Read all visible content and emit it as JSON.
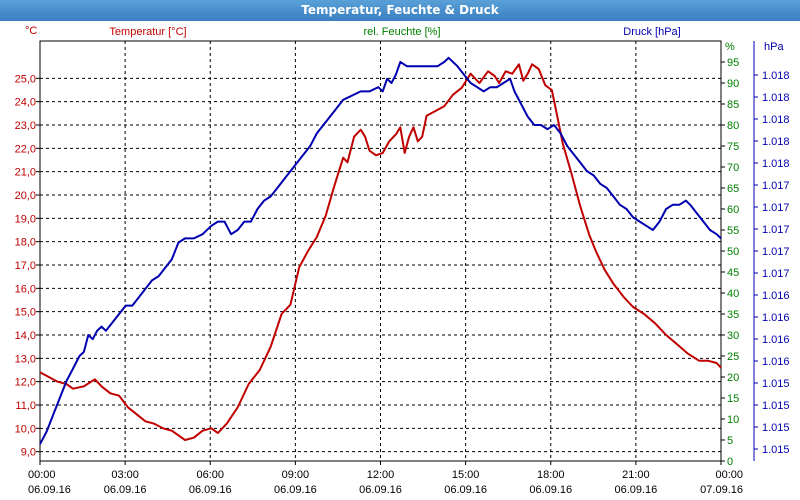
{
  "window": {
    "title": "Temperatur, Feuchte & Druck"
  },
  "colors": {
    "temperature": "#c00000",
    "humidity": "#008000",
    "pressure": "#0000b0",
    "grid": "#000000"
  },
  "chart_data": {
    "type": "line",
    "grid": true,
    "x": {
      "tick_hours": [
        0,
        3,
        6,
        9,
        12,
        15,
        18,
        21,
        24
      ],
      "tick_times": [
        "00:00",
        "03:00",
        "06:00",
        "09:00",
        "12:00",
        "15:00",
        "18:00",
        "21:00",
        "00:00"
      ],
      "tick_dates": [
        "06.09.16",
        "06.09.16",
        "06.09.16",
        "06.09.16",
        "06.09.16",
        "06.09.16",
        "06.09.16",
        "06.09.16",
        "07.09.16"
      ]
    },
    "axes": {
      "temperature": {
        "label": "Temperatur [°C]",
        "unit": "°C",
        "ylim": [
          8.6,
          26.6
        ],
        "tick_values": [
          9,
          10,
          11,
          12,
          13,
          14,
          15,
          16,
          17,
          18,
          19,
          20,
          21,
          22,
          23,
          24,
          25
        ],
        "tick_labels": [
          "9,0",
          "10,0",
          "11,0",
          "12,0",
          "13,0",
          "14,0",
          "15,0",
          "16,0",
          "17,0",
          "18,0",
          "19,0",
          "20,0",
          "21,0",
          "22,0",
          "23,0",
          "24,0",
          "25,0"
        ]
      },
      "humidity": {
        "label": "rel. Feuchte [%]",
        "unit": "%",
        "ylim": [
          0,
          100
        ],
        "tick_values": [
          0,
          5,
          10,
          15,
          20,
          25,
          30,
          35,
          40,
          45,
          50,
          55,
          60,
          65,
          70,
          75,
          80,
          85,
          90,
          95
        ],
        "tick_labels": [
          "0",
          "5",
          "10",
          "15",
          "20",
          "25",
          "30",
          "35",
          "40",
          "45",
          "50",
          "55",
          "60",
          "65",
          "70",
          "75",
          "80",
          "85",
          "90",
          "95"
        ]
      },
      "pressure": {
        "label": "Druck [hPa]",
        "unit": "hPa",
        "tick_labels": [
          "1.018",
          "1.018",
          "1.018",
          "1.018",
          "1.018",
          "1.017",
          "1.017",
          "1.017",
          "1.017",
          "1.017",
          "1.016",
          "1.016",
          "1.016",
          "1.016",
          "1.015",
          "1.015",
          "1.015",
          "1.015"
        ]
      }
    },
    "series": [
      {
        "name": "Temperatur [°C]",
        "axis": "temperature",
        "points": [
          [
            0,
            12.4
          ],
          [
            0.4,
            12.2
          ],
          [
            0.8,
            12.0
          ],
          [
            1.2,
            11.9
          ],
          [
            1.5,
            11.7
          ],
          [
            2.0,
            11.8
          ],
          [
            2.5,
            12.1
          ],
          [
            2.8,
            11.8
          ],
          [
            3.2,
            11.5
          ],
          [
            3.6,
            11.4
          ],
          [
            4.0,
            10.9
          ],
          [
            4.4,
            10.6
          ],
          [
            4.8,
            10.3
          ],
          [
            5.2,
            10.2
          ],
          [
            5.6,
            10.0
          ],
          [
            6.0,
            9.9
          ],
          [
            6.3,
            9.7
          ],
          [
            6.6,
            9.5
          ],
          [
            7.0,
            9.6
          ],
          [
            7.4,
            9.9
          ],
          [
            7.8,
            10.0
          ],
          [
            8.1,
            9.8
          ],
          [
            8.5,
            10.2
          ],
          [
            9.0,
            10.9
          ],
          [
            9.5,
            11.9
          ],
          [
            10.0,
            12.5
          ],
          [
            10.5,
            13.5
          ],
          [
            11.0,
            14.9
          ],
          [
            11.4,
            15.3
          ],
          [
            11.8,
            16.9
          ],
          [
            12.2,
            17.6
          ],
          [
            12.6,
            18.2
          ],
          [
            13.0,
            19.1
          ],
          [
            13.4,
            20.4
          ],
          [
            13.8,
            21.6
          ],
          [
            14.0,
            21.4
          ],
          [
            14.3,
            22.5
          ],
          [
            14.6,
            22.8
          ],
          [
            14.8,
            22.5
          ],
          [
            15.0,
            21.9
          ],
          [
            15.3,
            21.7
          ],
          [
            15.6,
            21.8
          ],
          [
            15.9,
            22.3
          ],
          [
            16.2,
            22.6
          ],
          [
            16.4,
            22.9
          ],
          [
            16.6,
            21.8
          ],
          [
            16.8,
            22.5
          ],
          [
            17.0,
            22.9
          ],
          [
            17.2,
            22.3
          ],
          [
            17.4,
            22.5
          ],
          [
            17.6,
            23.4
          ],
          [
            18.0,
            23.6
          ],
          [
            18.4,
            23.8
          ],
          [
            18.8,
            24.3
          ],
          [
            19.2,
            24.6
          ],
          [
            19.6,
            25.2
          ],
          [
            20.0,
            24.8
          ],
          [
            20.4,
            25.3
          ],
          [
            20.7,
            25.1
          ],
          [
            20.9,
            24.8
          ],
          [
            21.2,
            25.3
          ],
          [
            21.5,
            25.2
          ],
          [
            21.8,
            25.6
          ],
          [
            22.0,
            24.9
          ],
          [
            22.2,
            25.2
          ],
          [
            22.4,
            25.6
          ],
          [
            22.7,
            25.4
          ],
          [
            23.0,
            24.7
          ],
          [
            23.3,
            24.5
          ],
          [
            23.5,
            23.6
          ],
          [
            23.8,
            22.2
          ],
          [
            24.2,
            20.9
          ],
          [
            24.6,
            19.5
          ],
          [
            25.0,
            18.3
          ],
          [
            25.3,
            17.6
          ],
          [
            25.7,
            16.8
          ],
          [
            26.1,
            16.2
          ],
          [
            26.6,
            15.6
          ],
          [
            27.0,
            15.2
          ],
          [
            27.5,
            14.9
          ],
          [
            28.0,
            14.5
          ],
          [
            28.5,
            14.0
          ],
          [
            29.0,
            13.6
          ],
          [
            29.5,
            13.2
          ],
          [
            30.0,
            12.9
          ],
          [
            30.4,
            12.9
          ],
          [
            30.8,
            12.8
          ],
          [
            31.0,
            12.6
          ]
        ]
      },
      {
        "name": "rel. Feuchte [%]",
        "axis": "humidity",
        "points": [
          [
            0,
            4
          ],
          [
            0.3,
            7
          ],
          [
            0.6,
            11
          ],
          [
            0.9,
            15
          ],
          [
            1.2,
            19
          ],
          [
            1.5,
            22
          ],
          [
            1.8,
            25
          ],
          [
            2.0,
            26
          ],
          [
            2.2,
            30
          ],
          [
            2.4,
            29
          ],
          [
            2.6,
            31
          ],
          [
            2.8,
            32
          ],
          [
            3.0,
            31
          ],
          [
            3.3,
            33
          ],
          [
            3.6,
            35
          ],
          [
            3.9,
            37
          ],
          [
            4.2,
            37
          ],
          [
            4.5,
            39
          ],
          [
            4.8,
            41
          ],
          [
            5.1,
            43
          ],
          [
            5.4,
            44
          ],
          [
            5.7,
            46
          ],
          [
            6.0,
            48
          ],
          [
            6.3,
            52
          ],
          [
            6.6,
            53
          ],
          [
            7.0,
            53
          ],
          [
            7.4,
            54
          ],
          [
            7.8,
            56
          ],
          [
            8.1,
            57
          ],
          [
            8.4,
            57
          ],
          [
            8.7,
            54
          ],
          [
            9.0,
            55
          ],
          [
            9.3,
            57
          ],
          [
            9.6,
            57
          ],
          [
            9.9,
            60
          ],
          [
            10.2,
            62
          ],
          [
            10.5,
            63
          ],
          [
            10.8,
            65
          ],
          [
            11.1,
            67
          ],
          [
            11.4,
            69
          ],
          [
            11.7,
            71
          ],
          [
            12.0,
            73
          ],
          [
            12.3,
            75
          ],
          [
            12.6,
            78
          ],
          [
            12.9,
            80
          ],
          [
            13.2,
            82
          ],
          [
            13.5,
            84
          ],
          [
            13.8,
            86
          ],
          [
            14.2,
            87
          ],
          [
            14.6,
            88
          ],
          [
            15.0,
            88
          ],
          [
            15.4,
            89
          ],
          [
            15.6,
            88
          ],
          [
            15.8,
            91
          ],
          [
            16.0,
            90
          ],
          [
            16.2,
            92
          ],
          [
            16.4,
            95
          ],
          [
            16.7,
            94
          ],
          [
            17.0,
            94
          ],
          [
            17.4,
            94
          ],
          [
            17.8,
            94
          ],
          [
            18.1,
            94
          ],
          [
            18.4,
            95
          ],
          [
            18.6,
            96
          ],
          [
            18.8,
            95
          ],
          [
            19.0,
            94
          ],
          [
            19.3,
            92
          ],
          [
            19.6,
            90
          ],
          [
            19.9,
            89
          ],
          [
            20.2,
            88
          ],
          [
            20.5,
            89
          ],
          [
            20.8,
            89
          ],
          [
            21.1,
            90
          ],
          [
            21.4,
            91
          ],
          [
            21.6,
            88
          ],
          [
            21.9,
            85
          ],
          [
            22.2,
            82
          ],
          [
            22.5,
            80
          ],
          [
            22.8,
            80
          ],
          [
            23.1,
            79
          ],
          [
            23.4,
            80
          ],
          [
            23.7,
            78
          ],
          [
            24.0,
            75
          ],
          [
            24.3,
            73
          ],
          [
            24.6,
            71
          ],
          [
            24.9,
            69
          ],
          [
            25.2,
            68
          ],
          [
            25.5,
            66
          ],
          [
            25.8,
            65
          ],
          [
            26.1,
            63
          ],
          [
            26.4,
            61
          ],
          [
            26.7,
            60
          ],
          [
            27.0,
            58
          ],
          [
            27.3,
            57
          ],
          [
            27.6,
            56
          ],
          [
            27.9,
            55
          ],
          [
            28.2,
            57
          ],
          [
            28.5,
            60
          ],
          [
            28.8,
            61
          ],
          [
            29.1,
            61
          ],
          [
            29.4,
            62
          ],
          [
            29.6,
            61
          ],
          [
            29.9,
            59
          ],
          [
            30.2,
            57
          ],
          [
            30.5,
            55
          ],
          [
            30.8,
            54
          ],
          [
            31.0,
            53
          ]
        ]
      },
      {
        "name": "Druck [hPa]",
        "axis": "pressure",
        "points": []
      }
    ]
  }
}
